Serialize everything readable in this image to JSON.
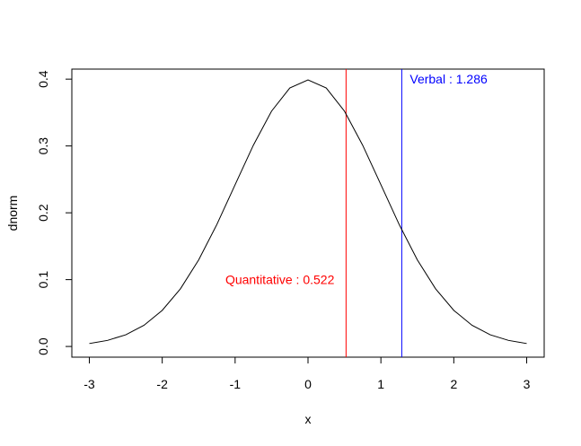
{
  "chart_data": {
    "type": "line",
    "title": "",
    "xlabel": "x",
    "ylabel": "dnorm",
    "xlim": [
      -3.24,
      3.24
    ],
    "ylim": [
      -0.016,
      0.415
    ],
    "x_ticks": [
      -3,
      -2,
      -1,
      0,
      1,
      2,
      3
    ],
    "x_tick_labels": [
      "-3",
      "-2",
      "-1",
      "0",
      "1",
      "2",
      "3"
    ],
    "y_ticks": [
      0.0,
      0.1,
      0.2,
      0.3,
      0.4
    ],
    "y_tick_labels": [
      "0.0",
      "0.1",
      "0.2",
      "0.3",
      "0.4"
    ],
    "grid": false,
    "series": [
      {
        "color": "#000000",
        "x": [
          -3.0,
          -2.75,
          -2.5,
          -2.25,
          -2.0,
          -1.75,
          -1.5,
          -1.25,
          -1.0,
          -0.75,
          -0.5,
          -0.25,
          0.0,
          0.25,
          0.5,
          0.75,
          1.0,
          1.25,
          1.5,
          1.75,
          2.0,
          2.25,
          2.5,
          2.75,
          3.0
        ],
        "y": [
          0.0044,
          0.0091,
          0.0175,
          0.0317,
          0.054,
          0.0863,
          0.1295,
          0.1826,
          0.242,
          0.3011,
          0.3521,
          0.3867,
          0.3989,
          0.3867,
          0.3521,
          0.3011,
          0.242,
          0.1826,
          0.1295,
          0.0863,
          0.054,
          0.0317,
          0.0175,
          0.0091,
          0.0044
        ]
      }
    ],
    "vlines": [
      {
        "x": 0.522,
        "color": "#ff0000"
      },
      {
        "x": 1.286,
        "color": "#0000ff"
      }
    ],
    "annotations": [
      {
        "text": "Quantitative : 0.522",
        "x": 0.522,
        "y": 0.1,
        "color": "#ff0000",
        "anchor": "end"
      },
      {
        "text": "Verbal : 1.286",
        "x": 1.286,
        "y": 0.4,
        "color": "#0000ff",
        "anchor": "start"
      }
    ]
  }
}
